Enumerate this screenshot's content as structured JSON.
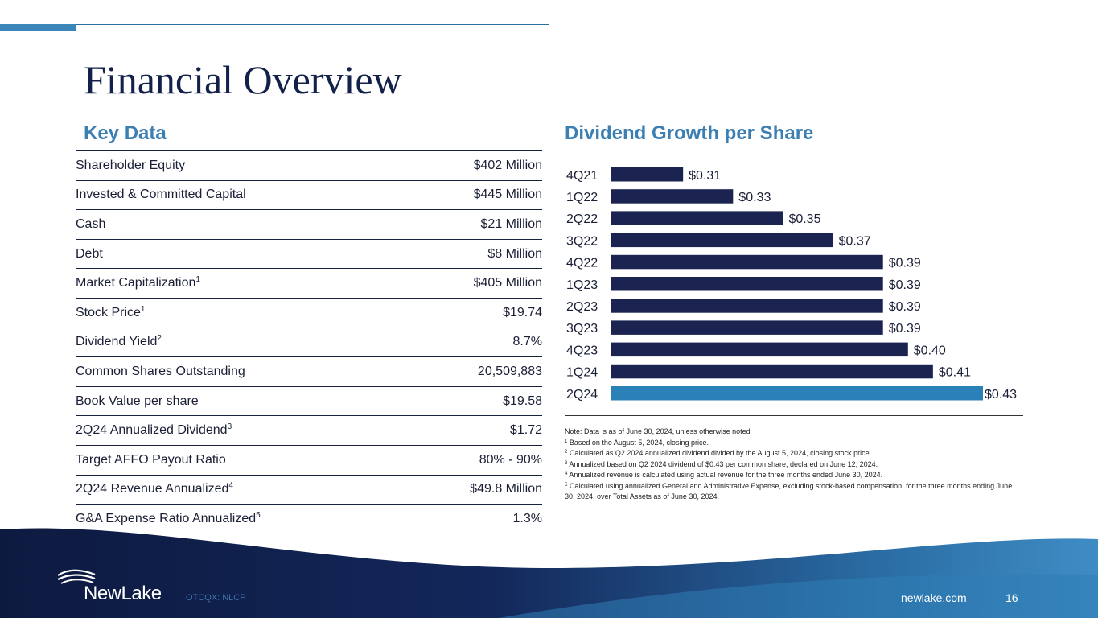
{
  "title": "Financial Overview",
  "key_data": {
    "heading": "Key Data",
    "rows": [
      {
        "label": "Shareholder Equity",
        "sup": "",
        "value": "$402 Million"
      },
      {
        "label": "Invested & Committed Capital",
        "sup": "",
        "value": "$445 Million"
      },
      {
        "label": "Cash",
        "sup": "",
        "value": "$21 Million"
      },
      {
        "label": "Debt",
        "sup": "",
        "value": "$8 Million"
      },
      {
        "label": "Market Capitalization",
        "sup": "1",
        "value": "$405 Million"
      },
      {
        "label": "Stock Price",
        "sup": "1",
        "value": "$19.74"
      },
      {
        "label": "Dividend Yield",
        "sup": "2",
        "value": "8.7%"
      },
      {
        "label": "Common Shares Outstanding",
        "sup": "",
        "value": "20,509,883"
      },
      {
        "label": "Book Value per share",
        "sup": "",
        "value": "$19.58"
      },
      {
        "label": "2Q24 Annualized Dividend",
        "sup": "3",
        "value": "$1.72"
      },
      {
        "label": "Target AFFO Payout Ratio",
        "sup": "",
        "value": "80% - 90%"
      },
      {
        "label": "2Q24 Revenue Annualized",
        "sup": "4",
        "value": "$49.8 Million"
      },
      {
        "label": "G&A Expense Ratio Annualized",
        "sup": "5",
        "value": "1.3%"
      }
    ]
  },
  "dividend": {
    "heading": "Dividend Growth per Share"
  },
  "chart_data": {
    "type": "bar",
    "orientation": "horizontal",
    "title": "Dividend Growth per Share",
    "categories": [
      "4Q21",
      "1Q22",
      "2Q22",
      "3Q22",
      "4Q22",
      "1Q23",
      "2Q23",
      "3Q23",
      "4Q23",
      "1Q24",
      "2Q24"
    ],
    "values": [
      0.31,
      0.33,
      0.35,
      0.37,
      0.39,
      0.39,
      0.39,
      0.39,
      0.4,
      0.41,
      0.43
    ],
    "labels": [
      "$0.31",
      "$0.33",
      "$0.35",
      "$0.37",
      "$0.39",
      "$0.39",
      "$0.39",
      "$0.39",
      "$0.40",
      "$0.41",
      "$0.43"
    ],
    "xlim": [
      0.3,
      0.43
    ],
    "colors": {
      "default": "#1b2450",
      "highlight": "#2a81b8"
    },
    "highlight_index": 10,
    "grid": false
  },
  "notes": [
    {
      "sup": "",
      "text": "Note: Data is as of June 30, 2024, unless otherwise noted"
    },
    {
      "sup": "1",
      "text": "Based on the August 5, 2024, closing price."
    },
    {
      "sup": "2",
      "text": "Calculated as Q2 2024 annualized dividend divided by the August 5, 2024, closing stock price."
    },
    {
      "sup": "3",
      "text": "Annualized based on Q2 2024 dividend of $0.43 per common share, declared on June 12, 2024."
    },
    {
      "sup": "4",
      "text": "Annualized revenue is calculated using actual revenue for the three months ended June 30, 2024."
    },
    {
      "sup": "5",
      "text": "Calculated using annualized General and Administrative Expense, excluding stock-based compensation, for the three months ending June 30, 2024, over Total Assets as of June 30, 2024."
    }
  ],
  "footer": {
    "logo_text": "NewLake",
    "ticker": "OTCQX: NLCP",
    "website": "newlake.com",
    "page_number": "16"
  },
  "colors": {
    "navy": "#13214a",
    "accent_blue": "#3b7fb3"
  }
}
